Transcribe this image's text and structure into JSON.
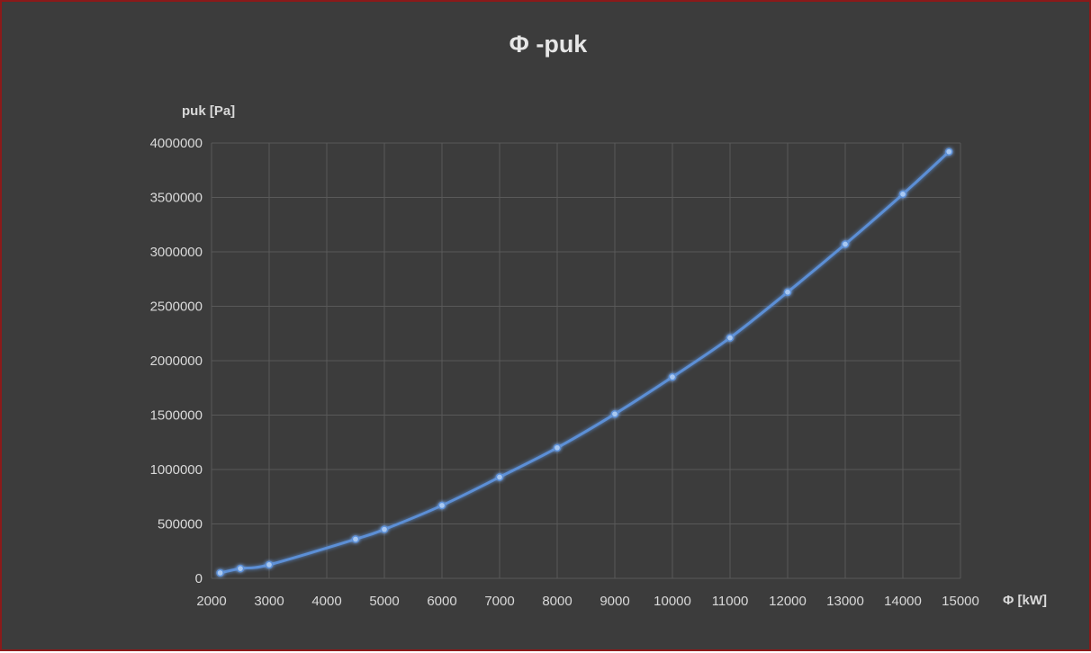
{
  "chart_data": {
    "type": "scatter",
    "title": "Φ -puk",
    "xlabel": "Φ [kW]",
    "ylabel": "puk [Pa]",
    "xlim": [
      2000,
      15000
    ],
    "ylim": [
      0,
      4000000
    ],
    "x_ticks": [
      2000,
      3000,
      4000,
      5000,
      6000,
      7000,
      8000,
      9000,
      10000,
      11000,
      12000,
      13000,
      14000,
      15000
    ],
    "y_ticks": [
      0,
      500000,
      1000000,
      1500000,
      2000000,
      2500000,
      3000000,
      3500000,
      4000000
    ],
    "grid": true,
    "smooth_line": true,
    "series": [
      {
        "color": "#5b8fd6",
        "x": [
          2150,
          2500,
          3000,
          4500,
          5000,
          6000,
          7000,
          8000,
          9000,
          10000,
          11000,
          12000,
          13000,
          14000,
          14800
        ],
        "y": [
          50000,
          90000,
          125000,
          360000,
          450000,
          670000,
          930000,
          1200000,
          1510000,
          1850000,
          2210000,
          2630000,
          3070000,
          3530000,
          3920000
        ]
      }
    ]
  }
}
